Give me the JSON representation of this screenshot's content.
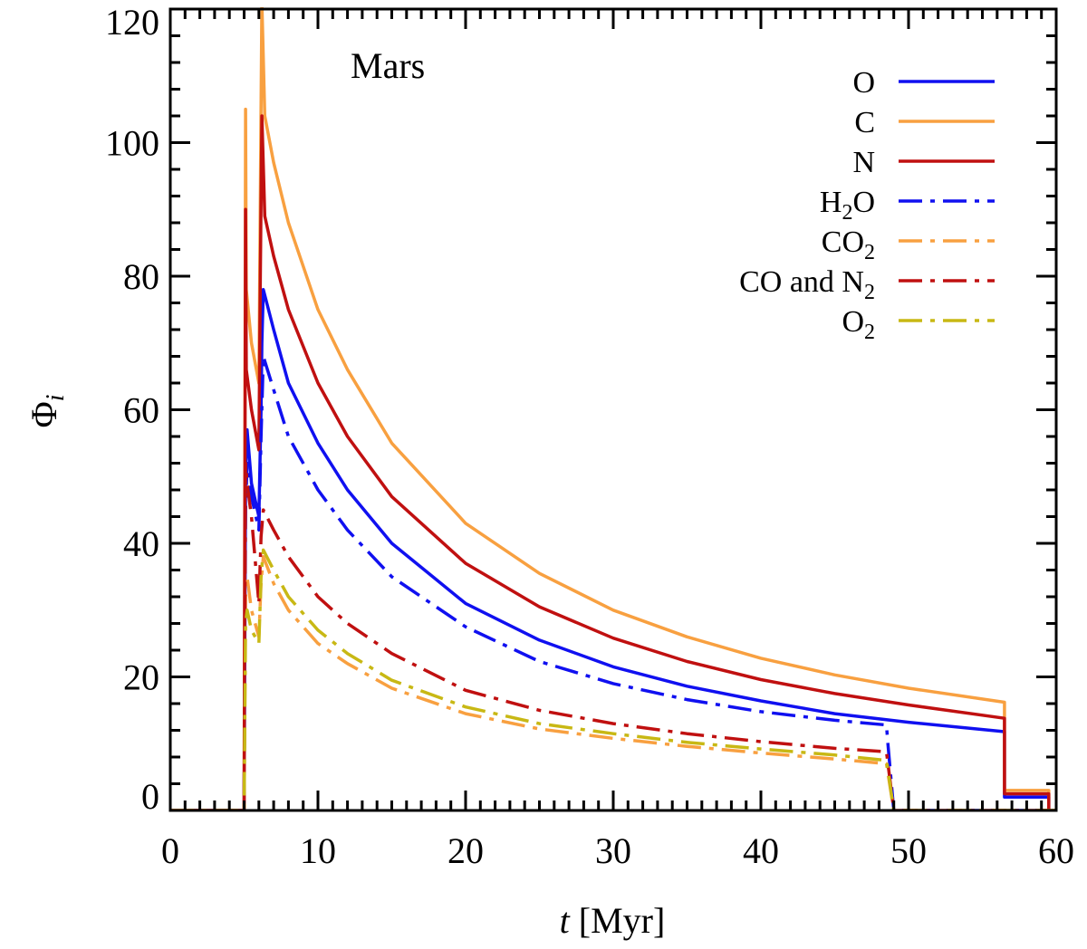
{
  "chart_data": {
    "type": "line",
    "title": "Mars",
    "xlabel_var": "t",
    "xlabel_unit": " [Myr]",
    "ylabel_base": "Φ",
    "ylabel_sub": "i",
    "xlim": [
      0,
      60
    ],
    "ylim": [
      0,
      120
    ],
    "x_ticks": [
      0,
      10,
      20,
      30,
      40,
      50,
      60
    ],
    "x_tick_labels": [
      "0",
      "10",
      "20",
      "30",
      "40",
      "50",
      "60"
    ],
    "y_ticks": [
      0,
      20,
      40,
      60,
      80,
      100,
      120
    ],
    "y_tick_labels": [
      "0",
      "20",
      "40",
      "60",
      "80",
      "100",
      "120"
    ],
    "legend_position": "top-right",
    "series": [
      {
        "name": "O",
        "label_main": "O",
        "label_sub": "",
        "label_tail": "",
        "color": "#1010f0",
        "style": "solid",
        "points": [
          [
            0,
            0
          ],
          [
            5.0,
            0
          ],
          [
            5.1,
            50
          ],
          [
            5.2,
            57
          ],
          [
            5.5,
            49
          ],
          [
            6.0,
            44
          ],
          [
            6.15,
            60
          ],
          [
            6.2,
            70
          ],
          [
            6.3,
            78
          ],
          [
            7,
            72
          ],
          [
            8,
            64
          ],
          [
            10,
            55
          ],
          [
            12,
            48
          ],
          [
            15,
            40
          ],
          [
            20,
            31
          ],
          [
            25,
            25.5
          ],
          [
            30,
            21.5
          ],
          [
            35,
            18.6
          ],
          [
            40,
            16.4
          ],
          [
            45,
            14.5
          ],
          [
            50,
            13.2
          ],
          [
            56.5,
            11.8
          ],
          [
            56.5,
            2
          ],
          [
            59.5,
            2
          ],
          [
            59.5,
            0
          ],
          [
            60,
            0
          ]
        ]
      },
      {
        "name": "C",
        "label_main": "C",
        "label_sub": "",
        "label_tail": "",
        "color": "#f8a040",
        "style": "solid",
        "points": [
          [
            0,
            0
          ],
          [
            5.0,
            0
          ],
          [
            5.1,
            105
          ],
          [
            5.15,
            78
          ],
          [
            5.5,
            70
          ],
          [
            6.0,
            64
          ],
          [
            6.1,
            92
          ],
          [
            6.2,
            121
          ],
          [
            6.4,
            104
          ],
          [
            7,
            97
          ],
          [
            8,
            88
          ],
          [
            10,
            75
          ],
          [
            12,
            66
          ],
          [
            15,
            55
          ],
          [
            20,
            43
          ],
          [
            25,
            35.5
          ],
          [
            30,
            30
          ],
          [
            35,
            26
          ],
          [
            40,
            22.8
          ],
          [
            45,
            20.3
          ],
          [
            50,
            18.3
          ],
          [
            56.5,
            16.2
          ],
          [
            56.5,
            3
          ],
          [
            59.5,
            3
          ],
          [
            59.5,
            0
          ],
          [
            60,
            0
          ]
        ]
      },
      {
        "name": "N",
        "label_main": "N",
        "label_sub": "",
        "label_tail": "",
        "color": "#c01010",
        "style": "solid",
        "points": [
          [
            0,
            0
          ],
          [
            5.0,
            0
          ],
          [
            5.1,
            90
          ],
          [
            5.15,
            66
          ],
          [
            5.5,
            60
          ],
          [
            6.0,
            54
          ],
          [
            6.1,
            80
          ],
          [
            6.2,
            104
          ],
          [
            6.4,
            89
          ],
          [
            7,
            83
          ],
          [
            8,
            75
          ],
          [
            10,
            64
          ],
          [
            12,
            56
          ],
          [
            15,
            47
          ],
          [
            20,
            37
          ],
          [
            25,
            30.5
          ],
          [
            30,
            25.8
          ],
          [
            35,
            22.3
          ],
          [
            40,
            19.6
          ],
          [
            45,
            17.5
          ],
          [
            50,
            15.8
          ],
          [
            56.5,
            13.8
          ],
          [
            56.5,
            2.5
          ],
          [
            59.5,
            2.5
          ],
          [
            59.5,
            0
          ],
          [
            60,
            0
          ]
        ]
      },
      {
        "name": "H2O",
        "label_main": "H",
        "label_sub": "2",
        "label_tail": "O",
        "color": "#1010f0",
        "style": "dashdot",
        "points": [
          [
            0,
            0
          ],
          [
            5.0,
            0
          ],
          [
            5.1,
            45
          ],
          [
            5.2,
            52
          ],
          [
            5.5,
            47
          ],
          [
            6.0,
            42
          ],
          [
            6.15,
            56
          ],
          [
            6.3,
            68
          ],
          [
            7,
            63
          ],
          [
            8,
            56
          ],
          [
            10,
            48
          ],
          [
            12,
            42
          ],
          [
            15,
            35
          ],
          [
            20,
            27.5
          ],
          [
            25,
            22.3
          ],
          [
            30,
            19
          ],
          [
            35,
            16.6
          ],
          [
            40,
            14.8
          ],
          [
            45,
            13.5
          ],
          [
            48.5,
            12.8
          ],
          [
            48.6,
            10
          ],
          [
            49,
            0
          ],
          [
            60,
            0
          ]
        ]
      },
      {
        "name": "CO2",
        "label_main": "CO",
        "label_sub": "2",
        "label_tail": "",
        "color": "#f8a040",
        "style": "dashdot",
        "points": [
          [
            0,
            0
          ],
          [
            5.0,
            0
          ],
          [
            5.1,
            32
          ],
          [
            5.2,
            35
          ],
          [
            5.5,
            30
          ],
          [
            6.0,
            26
          ],
          [
            6.15,
            34
          ],
          [
            6.3,
            38
          ],
          [
            7,
            34
          ],
          [
            8,
            30
          ],
          [
            10,
            25
          ],
          [
            12,
            22
          ],
          [
            15,
            18.3
          ],
          [
            20,
            14.5
          ],
          [
            25,
            12.2
          ],
          [
            30,
            10.8
          ],
          [
            35,
            9.6
          ],
          [
            40,
            8.6
          ],
          [
            45,
            7.7
          ],
          [
            48.5,
            7
          ],
          [
            49,
            0
          ],
          [
            60,
            0
          ]
        ]
      },
      {
        "name": "CO and N2",
        "label_main": "CO and N",
        "label_sub": "2",
        "label_tail": "",
        "color": "#c01010",
        "style": "dashdot",
        "points": [
          [
            0,
            0
          ],
          [
            5.0,
            0
          ],
          [
            5.1,
            52
          ],
          [
            5.2,
            49
          ],
          [
            5.5,
            44
          ],
          [
            6.0,
            31
          ],
          [
            6.15,
            41
          ],
          [
            6.3,
            45
          ],
          [
            7,
            42
          ],
          [
            8,
            38
          ],
          [
            10,
            32
          ],
          [
            12,
            28
          ],
          [
            15,
            23.5
          ],
          [
            20,
            18
          ],
          [
            25,
            15
          ],
          [
            30,
            13
          ],
          [
            35,
            11.5
          ],
          [
            40,
            10.3
          ],
          [
            45,
            9.3
          ],
          [
            48.5,
            8.8
          ],
          [
            49,
            0
          ],
          [
            60,
            0
          ]
        ]
      },
      {
        "name": "O2",
        "label_main": "O",
        "label_sub": "2",
        "label_tail": "",
        "color": "#c8b814",
        "style": "dashdot",
        "points": [
          [
            0,
            0
          ],
          [
            5.0,
            0
          ],
          [
            5.1,
            28
          ],
          [
            5.2,
            30
          ],
          [
            5.5,
            27
          ],
          [
            6.0,
            25
          ],
          [
            6.15,
            35
          ],
          [
            6.3,
            39
          ],
          [
            7,
            36
          ],
          [
            8,
            32
          ],
          [
            10,
            27
          ],
          [
            12,
            23.5
          ],
          [
            15,
            19.5
          ],
          [
            20,
            15.5
          ],
          [
            25,
            13
          ],
          [
            30,
            11.5
          ],
          [
            35,
            10.2
          ],
          [
            40,
            9.2
          ],
          [
            45,
            8.3
          ],
          [
            48.5,
            7.5
          ],
          [
            49,
            0
          ],
          [
            60,
            0
          ]
        ]
      }
    ]
  }
}
